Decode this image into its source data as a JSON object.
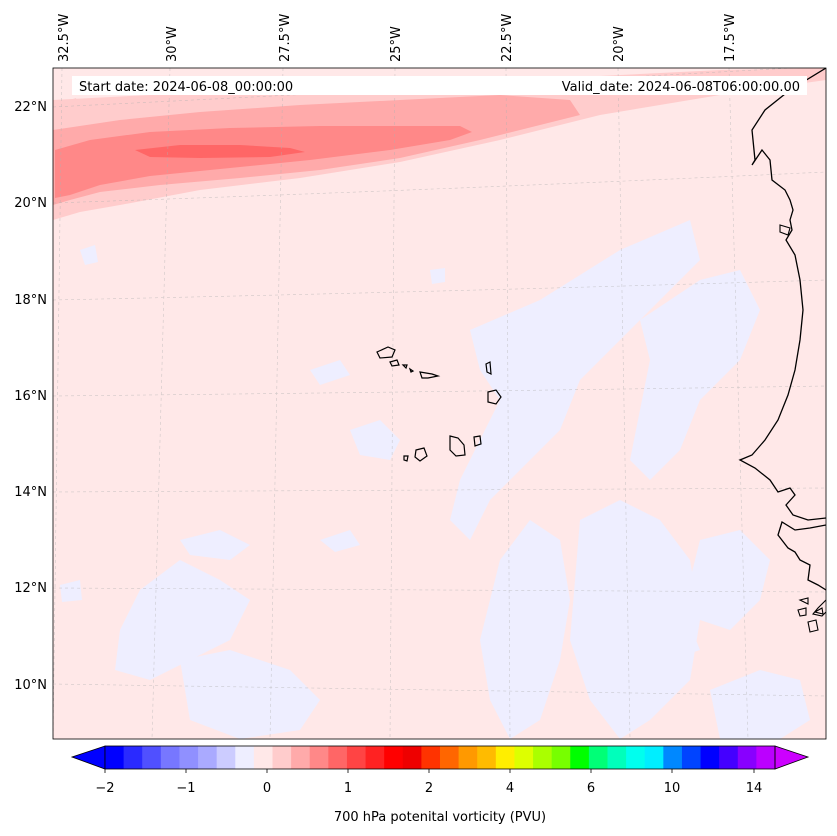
{
  "map": {
    "start_date": "Start date: 2024-06-08_00:00:00",
    "valid_date": "Valid_date: 2024-06-08T06:00:00.00",
    "lon_labels": [
      "32.5°W",
      "30°W",
      "27.5°W",
      "25°W",
      "22.5°W",
      "20°W",
      "17.5°W"
    ],
    "lat_labels": [
      "22°N",
      "20°N",
      "18°N",
      "16°N",
      "14°N",
      "12°N",
      "10°N"
    ],
    "colorbar": {
      "label": "700 hPa potenital vorticity (PVU)",
      "tick_labels": [
        "−2",
        "−1",
        "0",
        "1",
        "2",
        "4",
        "6",
        "10",
        "14"
      ],
      "colors": [
        "#0000ff",
        "#2a2aff",
        "#5050ff",
        "#7777ff",
        "#9090ff",
        "#aaaaff",
        "#ccccff",
        "#eeeeff",
        "#ffe8e8",
        "#ffcccc",
        "#ffaaaa",
        "#ff8888",
        "#ff6666",
        "#ff4444",
        "#ff2222",
        "#ff0000",
        "#ee0000",
        "#ff3300",
        "#ff6600",
        "#ff9900",
        "#ffbb00",
        "#ffee00",
        "#ddff00",
        "#aaff00",
        "#77ff00",
        "#00ff00",
        "#00ff77",
        "#00ffbb",
        "#00ffee",
        "#00eeff",
        "#0088ff",
        "#0044ff",
        "#0000ff",
        "#4400ff",
        "#8800ff",
        "#bb00ff"
      ],
      "min_color": "#0000ff",
      "max_color": "#cc00ff"
    },
    "colors": {
      "background_field": "#ffe8e8",
      "negative_field": "#eeeeff",
      "band_light": "#ffcccc",
      "band_mid": "#ffaaaa",
      "band_strong": "#ff8888",
      "band_core": "#ff6666",
      "coastline": "#000000"
    }
  }
}
